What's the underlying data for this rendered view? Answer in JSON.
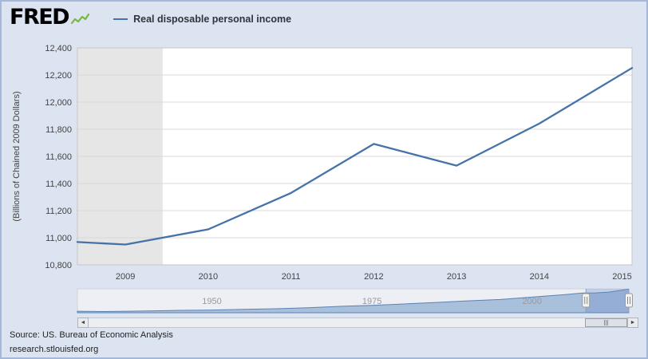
{
  "header": {
    "logo_text": "FRED",
    "legend": {
      "label": "Real disposable personal income",
      "color": "#4572a7"
    }
  },
  "chart_data": {
    "type": "line",
    "title": "",
    "ylabel": "(Billions of Chained 2009 Dollars)",
    "ylim": [
      10800,
      12400
    ],
    "yticks": [
      10800,
      11000,
      11200,
      11400,
      11600,
      11800,
      12000,
      12200,
      12400
    ],
    "xlim": [
      2008.42,
      2015.12
    ],
    "xticks": [
      2009,
      2010,
      2011,
      2012,
      2013,
      2014,
      2015
    ],
    "grid": true,
    "legend_position": "top",
    "line_color": "#4572a7",
    "recession_band": {
      "start": 2008.42,
      "end": 2009.45,
      "color": "#e6e6e6"
    },
    "series": [
      {
        "name": "Real disposable personal income",
        "x": [
          2008.42,
          2009,
          2010,
          2011,
          2012,
          2013,
          2014,
          2015.12
        ],
        "values": [
          10968,
          10950,
          11062,
          11330,
          11692,
          11532,
          11842,
          12252
        ]
      }
    ],
    "navigator": {
      "xlim": [
        1929,
        2015.12
      ],
      "ylim": [
        0,
        12400
      ],
      "ticks": [
        1950,
        1975,
        2000
      ],
      "tick_labels": [
        "1950",
        "1975",
        "2000"
      ],
      "x": [
        1929,
        1933,
        1937,
        1941,
        1945,
        1950,
        1955,
        1960,
        1965,
        1970,
        1975,
        1980,
        1985,
        1990,
        1995,
        2000,
        2005,
        2008,
        2010,
        2012,
        2015.12
      ],
      "values": [
        780,
        600,
        780,
        1000,
        1220,
        1420,
        1730,
        2060,
        2620,
        3290,
        3820,
        4560,
        5320,
        6170,
        6850,
        8100,
        9360,
        10200,
        10300,
        10700,
        12252
      ],
      "selection": {
        "start": 2008.42,
        "end": 2015.12
      },
      "area_fill": "#a9c0dd",
      "area_stroke": "#5b82b2",
      "mask_fill": "rgba(102,133,194,0.3)"
    }
  },
  "scrollbar": {
    "left_arrow_glyph": "◄",
    "right_arrow_glyph": "►"
  },
  "footer": {
    "source": "Source: US. Bureau of Economic Analysis",
    "site": "research.stlouisfed.org"
  }
}
